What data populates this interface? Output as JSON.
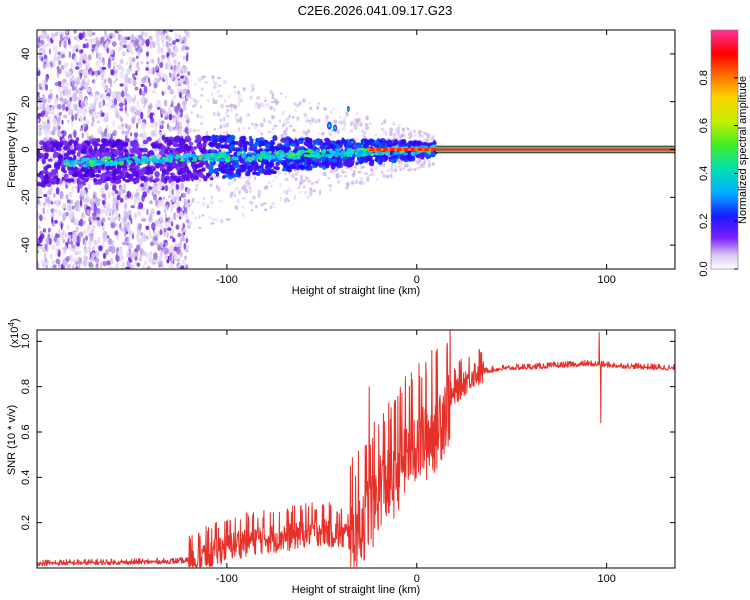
{
  "title": "C2E6.2026.041.09.17.G23",
  "chart_data": [
    {
      "type": "heatmap",
      "name": "spectrogram",
      "xlabel": "Height of straight line (km)",
      "ylabel": "Frequency (Hz)",
      "xlim": [
        -200,
        136
      ],
      "ylim": [
        -50,
        50
      ],
      "x_ticks": [
        -100,
        0,
        100
      ],
      "y_ticks": [
        -40,
        -20,
        0,
        20,
        40
      ],
      "x_tick_labels": [
        "-100",
        "0",
        "100"
      ],
      "y_tick_labels": [
        "-40",
        "-20",
        "0",
        "20",
        "40"
      ],
      "carrier_start_km": 10,
      "noise_region_end_km": -120,
      "colorbar": {
        "label": "Normalized spectral amplitude",
        "range": [
          0,
          1
        ],
        "ticks": [
          0.0,
          0.2,
          0.4,
          0.6,
          0.8
        ],
        "tick_labels": [
          "0.0",
          "0.2",
          "0.4",
          "0.6",
          "0.8"
        ]
      }
    },
    {
      "type": "line",
      "name": "snr",
      "xlabel": "Height of straight line (km)",
      "ylabel": "SNR (10 * v/v)",
      "multiplier": "(x10",
      "multiplier_exp": "4",
      "multiplier_close": ")",
      "xlim": [
        -200,
        136
      ],
      "ylim": [
        0,
        1.05
      ],
      "x_ticks": [
        -100,
        0,
        100
      ],
      "y_ticks": [
        0.2,
        0.4,
        0.6,
        0.8,
        1.0
      ],
      "x_tick_labels": [
        "-100",
        "0",
        "100"
      ],
      "y_tick_labels": [
        "0.2",
        "0.4",
        "0.6",
        "0.8",
        "1.0"
      ],
      "color": "#e8302a",
      "profile": [
        [
          -200,
          0.02
        ],
        [
          -150,
          0.025
        ],
        [
          -120,
          0.03
        ],
        [
          -110,
          0.06
        ],
        [
          -100,
          0.1
        ],
        [
          -85,
          0.13
        ],
        [
          -70,
          0.14
        ],
        [
          -60,
          0.16
        ],
        [
          -50,
          0.17
        ],
        [
          -40,
          0.15
        ],
        [
          -33,
          0.14
        ],
        [
          -28,
          0.22
        ],
        [
          -22,
          0.3
        ],
        [
          -18,
          0.4
        ],
        [
          -14,
          0.38
        ],
        [
          -8,
          0.48
        ],
        [
          -2,
          0.55
        ],
        [
          5,
          0.58
        ],
        [
          10,
          0.62
        ],
        [
          16,
          0.72
        ],
        [
          22,
          0.8
        ],
        [
          30,
          0.86
        ],
        [
          45,
          0.88
        ],
        [
          70,
          0.89
        ],
        [
          90,
          0.9
        ],
        [
          110,
          0.89
        ],
        [
          136,
          0.88
        ]
      ],
      "spikes": [
        {
          "x": 8,
          "y": 0.96
        },
        {
          "x": -25,
          "y": 0.8
        },
        {
          "x": 96,
          "y": 1.04
        },
        {
          "x": 97,
          "y": 0.64
        },
        {
          "x": -35,
          "y": 0.45
        }
      ]
    }
  ]
}
